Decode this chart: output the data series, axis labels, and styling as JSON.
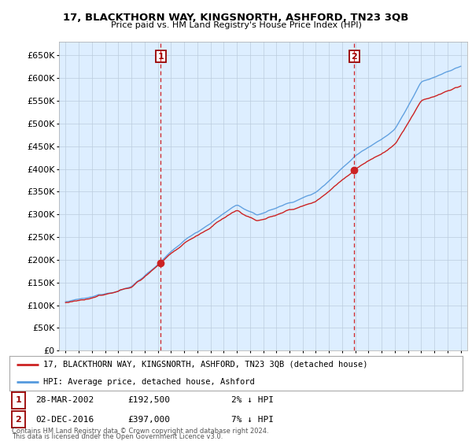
{
  "title": "17, BLACKTHORN WAY, KINGSNORTH, ASHFORD, TN23 3QB",
  "subtitle": "Price paid vs. HM Land Registry's House Price Index (HPI)",
  "yticks": [
    0,
    50000,
    100000,
    150000,
    200000,
    250000,
    300000,
    350000,
    400000,
    450000,
    500000,
    550000,
    600000,
    650000
  ],
  "ylim": [
    0,
    680000
  ],
  "hpi_color": "#5599dd",
  "price_color": "#cc2222",
  "vline_color": "#cc0000",
  "marker1_year": 2002.23,
  "marker2_year": 2016.92,
  "marker1_value": 192500,
  "marker2_value": 397000,
  "annotation1": {
    "num": "1",
    "date": "28-MAR-2002",
    "price": "£192,500",
    "pct": "2% ↓ HPI"
  },
  "annotation2": {
    "num": "2",
    "date": "02-DEC-2016",
    "price": "£397,000",
    "pct": "7% ↓ HPI"
  },
  "legend_label1": "17, BLACKTHORN WAY, KINGSNORTH, ASHFORD, TN23 3QB (detached house)",
  "legend_label2": "HPI: Average price, detached house, Ashford",
  "footer1": "Contains HM Land Registry data © Crown copyright and database right 2024.",
  "footer2": "This data is licensed under the Open Government Licence v3.0.",
  "background_color": "#ffffff",
  "plot_bg_color": "#ddeeff",
  "grid_color": "#bbccdd"
}
